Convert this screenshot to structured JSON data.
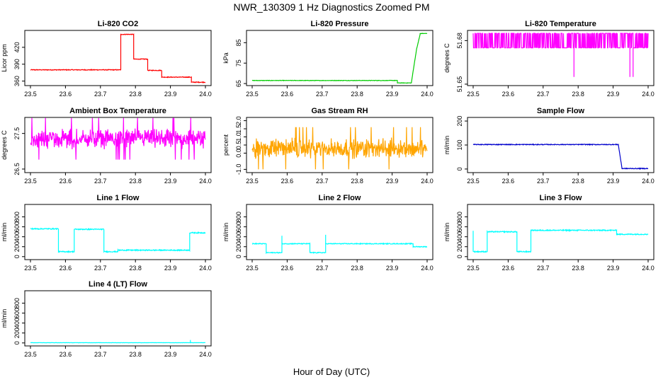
{
  "figure": {
    "title": "NWR_130309  1 Hz Diagnostics Zoomed PM",
    "xlabel": "Hour of Day (UTC)"
  },
  "chart_data": [
    {
      "type": "line",
      "title": "Li-820 CO2",
      "ylabel": "Licor ppm",
      "color": "#ff0000",
      "xlim": [
        23.5,
        24.0
      ],
      "ylim": [
        352,
        450
      ],
      "xticks": [
        "23.5",
        "23.6",
        "23.7",
        "23.8",
        "23.9",
        "24.0"
      ],
      "yticks": [
        {
          "v": 360,
          "t": "360"
        },
        {
          "v": 390,
          "t": "390"
        },
        {
          "v": 420,
          "t": "420"
        }
      ],
      "noise": 0.6,
      "segments": [
        {
          "x0": 23.5,
          "x1": 23.758,
          "y": 380
        },
        {
          "x0": 23.758,
          "x1": 23.795,
          "y": 443
        },
        {
          "x0": 23.795,
          "x1": 23.835,
          "y": 399
        },
        {
          "x0": 23.835,
          "x1": 23.875,
          "y": 379
        },
        {
          "x0": 23.875,
          "x1": 23.96,
          "y": 367
        },
        {
          "x0": 23.96,
          "x1": 24.0,
          "y": 358
        }
      ]
    },
    {
      "type": "line",
      "title": "Li-820 Pressure",
      "ylabel": "kPa",
      "color": "#00cc00",
      "xlim": [
        23.5,
        24.0
      ],
      "ylim": [
        64,
        91
      ],
      "xticks": [
        "23.5",
        "23.6",
        "23.7",
        "23.8",
        "23.9",
        "24.0"
      ],
      "yticks": [
        {
          "v": 65,
          "t": "65"
        },
        {
          "v": 75,
          "t": "75"
        },
        {
          "v": 85,
          "t": "85"
        }
      ],
      "noise": 0.1,
      "segments": [
        {
          "x0": 23.5,
          "x1": 23.915,
          "y": 66.5
        },
        {
          "x0": 23.915,
          "x1": 23.955,
          "y": 65.3
        },
        {
          "x0": 23.955,
          "x1": 23.97,
          "y0": 65.5,
          "y1": 82
        },
        {
          "x0": 23.97,
          "x1": 23.98,
          "y0": 82,
          "y1": 89
        },
        {
          "x0": 23.98,
          "x1": 24.0,
          "y": 89.5
        }
      ]
    },
    {
      "type": "line",
      "title": "Li-820 Temperature",
      "ylabel": "degrees C",
      "color": "#ff00ff",
      "xlim": [
        23.5,
        24.0
      ],
      "ylim": [
        51.649,
        51.687
      ],
      "xticks": [
        "23.5",
        "23.6",
        "23.7",
        "23.8",
        "23.9",
        "24.0"
      ],
      "yticks": [
        {
          "v": 51.65,
          "t": "51.65"
        },
        {
          "v": 51.68,
          "t": "51.68"
        }
      ],
      "style": "digital",
      "low": 51.675,
      "high": 51.685,
      "dips": [
        {
          "x": 23.788,
          "y": 51.655
        },
        {
          "x": 23.948,
          "y": 51.655
        },
        {
          "x": 23.957,
          "y": 51.655
        }
      ]
    },
    {
      "type": "line",
      "title": "Ambient Box Temperature",
      "ylabel": "degrees C",
      "color": "#ff00ff",
      "xlim": [
        23.5,
        24.0
      ],
      "ylim": [
        26.4,
        27.95
      ],
      "xticks": [
        "23.5",
        "23.6",
        "23.7",
        "23.8",
        "23.9",
        "24.0"
      ],
      "yticks": [
        {
          "v": 26.5,
          "t": "26.5"
        },
        {
          "v": 27.5,
          "t": "27.5"
        }
      ],
      "style": "noise",
      "base": 27.35,
      "amp": 0.45
    },
    {
      "type": "line",
      "title": "Gas Stream RH",
      "ylabel": "percent",
      "color": "#ffa500",
      "xlim": [
        23.5,
        24.0
      ],
      "ylim": [
        -1.2,
        2.2
      ],
      "xticks": [
        "23.5",
        "23.6",
        "23.7",
        "23.8",
        "23.9",
        "24.0"
      ],
      "yticks": [
        {
          "v": -1.0,
          "t": "-1.0"
        },
        {
          "v": 0.0,
          "t": "0.0"
        },
        {
          "v": 0.5,
          "t": "0.5"
        },
        {
          "v": 1.0,
          "t": "1.0"
        },
        {
          "v": 1.5,
          "t": "1.5"
        },
        {
          "v": 2.0,
          "t": "2.0"
        }
      ],
      "style": "noise",
      "base": 0.3,
      "amp": 1.0
    },
    {
      "type": "line",
      "title": "Sample Flow",
      "ylabel": "ml/min",
      "color": "#0000cc",
      "xlim": [
        23.5,
        24.0
      ],
      "ylim": [
        -15,
        215
      ],
      "xticks": [
        "23.5",
        "23.6",
        "23.7",
        "23.8",
        "23.9",
        "24.0"
      ],
      "yticks": [
        {
          "v": 0,
          "t": "0"
        },
        {
          "v": 100,
          "t": "100"
        },
        {
          "v": 200,
          "t": "200"
        }
      ],
      "noise": 1.5,
      "segments": [
        {
          "x0": 23.5,
          "x1": 23.915,
          "y": 102
        },
        {
          "x0": 23.915,
          "x1": 23.925,
          "y0": 100,
          "y1": 5
        },
        {
          "x0": 23.925,
          "x1": 24.0,
          "y": 2
        }
      ]
    },
    {
      "type": "line",
      "title": "Line 1 Flow",
      "ylabel": "ml/min",
      "color": "#00ffff",
      "xlim": [
        23.5,
        24.0
      ],
      "ylim": [
        -60,
        1050
      ],
      "xticks": [
        "23.5",
        "23.6",
        "23.7",
        "23.8",
        "23.9",
        "24.0"
      ],
      "yticks": [
        {
          "v": 0,
          "t": "0"
        },
        {
          "v": 200,
          "t": "200"
        },
        {
          "v": 400,
          "t": "400"
        },
        {
          "v": 600,
          "t": "600"
        },
        {
          "v": 800,
          "t": "800"
        }
      ],
      "noise": 10,
      "segments": [
        {
          "x0": 23.5,
          "x1": 23.58,
          "y": 560
        },
        {
          "x0": 23.58,
          "x1": 23.625,
          "y": 100
        },
        {
          "x0": 23.625,
          "x1": 23.71,
          "y": 550
        },
        {
          "x0": 23.71,
          "x1": 23.75,
          "y": 100
        },
        {
          "x0": 23.75,
          "x1": 23.955,
          "y": 130
        },
        {
          "x0": 23.955,
          "x1": 24.0,
          "y": 480
        }
      ]
    },
    {
      "type": "line",
      "title": "Line 2 Flow",
      "ylabel": "ml/min",
      "color": "#00ffff",
      "xlim": [
        23.5,
        24.0
      ],
      "ylim": [
        -60,
        1050
      ],
      "xticks": [
        "23.5",
        "23.6",
        "23.7",
        "23.8",
        "23.9",
        "24.0"
      ],
      "yticks": [
        {
          "v": 0,
          "t": "0"
        },
        {
          "v": 200,
          "t": "200"
        },
        {
          "v": 400,
          "t": "400"
        },
        {
          "v": 600,
          "t": "600"
        },
        {
          "v": 800,
          "t": "800"
        }
      ],
      "noise": 8,
      "segments": [
        {
          "x0": 23.5,
          "x1": 23.54,
          "y": 260
        },
        {
          "x0": 23.54,
          "x1": 23.585,
          "y": 80
        },
        {
          "x0": 23.585,
          "x1": 23.665,
          "y": 260
        },
        {
          "x0": 23.665,
          "x1": 23.71,
          "y": 80
        },
        {
          "x0": 23.71,
          "x1": 23.96,
          "y": 260
        },
        {
          "x0": 23.96,
          "x1": 24.0,
          "y": 200
        }
      ],
      "spikes": [
        {
          "x": 23.585,
          "y": 420
        },
        {
          "x": 23.71,
          "y": 440
        }
      ]
    },
    {
      "type": "line",
      "title": "Line 3 Flow",
      "ylabel": "ml/min",
      "color": "#00ffff",
      "xlim": [
        23.5,
        24.0
      ],
      "ylim": [
        -60,
        1050
      ],
      "xticks": [
        "23.5",
        "23.6",
        "23.7",
        "23.8",
        "23.9",
        "24.0"
      ],
      "yticks": [
        {
          "v": 0,
          "t": "0"
        },
        {
          "v": 200,
          "t": "200"
        },
        {
          "v": 400,
          "t": "400"
        },
        {
          "v": 600,
          "t": "600"
        },
        {
          "v": 800,
          "t": "800"
        }
      ],
      "noise": 10,
      "segments": [
        {
          "x0": 23.5,
          "x1": 23.54,
          "y": 100
        },
        {
          "x0": 23.54,
          "x1": 23.625,
          "y": 500
        },
        {
          "x0": 23.625,
          "x1": 23.665,
          "y": 100
        },
        {
          "x0": 23.665,
          "x1": 23.91,
          "y": 530
        },
        {
          "x0": 23.91,
          "x1": 24.0,
          "y": 450
        }
      ],
      "spikes": [
        {
          "x": 23.5,
          "y": 520
        }
      ]
    },
    {
      "type": "line",
      "title": "Line 4 (LT) Flow",
      "ylabel": "ml/min",
      "color": "#00ffff",
      "xlim": [
        23.5,
        24.0
      ],
      "ylim": [
        -60,
        1050
      ],
      "xticks": [
        "23.5",
        "23.6",
        "23.7",
        "23.8",
        "23.9",
        "24.0"
      ],
      "yticks": [
        {
          "v": 0,
          "t": "0"
        },
        {
          "v": 200,
          "t": "200"
        },
        {
          "v": 400,
          "t": "400"
        },
        {
          "v": 600,
          "t": "600"
        },
        {
          "v": 800,
          "t": "800"
        }
      ],
      "noise": 2,
      "segments": [
        {
          "x0": 23.5,
          "x1": 24.0,
          "y": 5
        }
      ],
      "spikes": [
        {
          "x": 23.957,
          "y": 60
        }
      ]
    }
  ]
}
